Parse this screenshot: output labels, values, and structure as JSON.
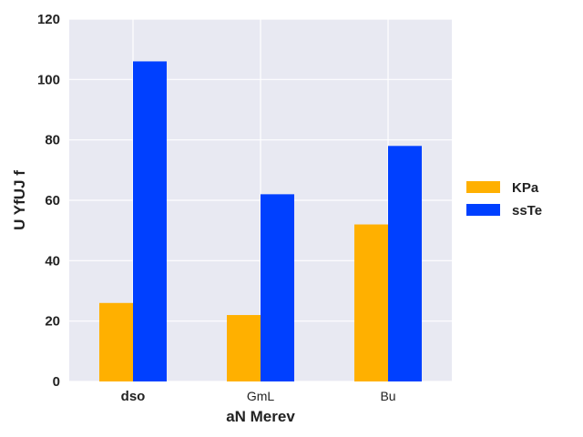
{
  "chart_data": {
    "type": "bar",
    "title": "",
    "xlabel": "aN Merev",
    "ylabel": "U YfUJ f",
    "categories": [
      "dso",
      "GmL",
      "Bu"
    ],
    "category_bold": [
      true,
      false,
      false
    ],
    "series": [
      {
        "name": "KPa",
        "color": "#ffb000",
        "values": [
          26,
          22,
          52
        ]
      },
      {
        "name": "ssTe",
        "color": "#0040ff",
        "values": [
          106,
          62,
          78
        ]
      }
    ],
    "ylim": [
      0,
      120
    ],
    "yticks": [
      0,
      20,
      40,
      60,
      80,
      100,
      120
    ],
    "grid": true,
    "legend_position": "right",
    "plot_background": "#e8e9f2",
    "grid_color": "#ffffff"
  }
}
